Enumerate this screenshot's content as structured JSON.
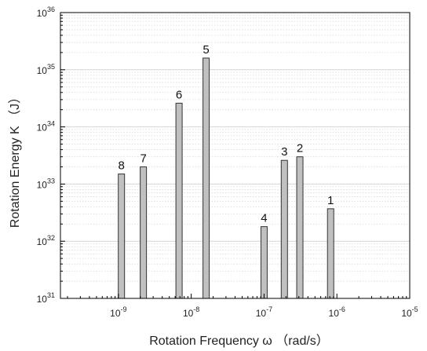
{
  "chart_data": {
    "type": "bar",
    "xlabel": "Rotation Frequency ω （rad/s）",
    "ylabel": "Rotation Energy K （J）",
    "x_scale": "log",
    "y_scale": "log",
    "xlim": [
      1.6e-10,
      1e-05
    ],
    "ylim": [
      1e+31,
      1e+36
    ],
    "x_ticks": [
      {
        "base": "10",
        "exp": "-9",
        "value": 1e-09
      },
      {
        "base": "10",
        "exp": "-8",
        "value": 1e-08
      },
      {
        "base": "10",
        "exp": "-7",
        "value": 1e-07
      },
      {
        "base": "10",
        "exp": "-6",
        "value": 1e-06
      },
      {
        "base": "10",
        "exp": "-5",
        "value": 1e-05
      }
    ],
    "y_ticks": [
      {
        "base": "10",
        "exp": "31",
        "value": 1e+31
      },
      {
        "base": "10",
        "exp": "32",
        "value": 1e+32
      },
      {
        "base": "10",
        "exp": "33",
        "value": 1e+33
      },
      {
        "base": "10",
        "exp": "34",
        "value": 1e+34
      },
      {
        "base": "10",
        "exp": "35",
        "value": 1e+35
      },
      {
        "base": "10",
        "exp": "36",
        "value": 1e+36
      }
    ],
    "grid": true,
    "bar_color": "#c0c0c0",
    "bars": [
      {
        "label": "8",
        "x": 1.1e-09,
        "y": 1.5e+33
      },
      {
        "label": "7",
        "x": 2.2e-09,
        "y": 2e+33
      },
      {
        "label": "6",
        "x": 6.8e-09,
        "y": 2.6e+34
      },
      {
        "label": "5",
        "x": 1.6e-08,
        "y": 1.6e+35
      },
      {
        "label": "4",
        "x": 1e-07,
        "y": 1.8e+32
      },
      {
        "label": "3",
        "x": 1.9e-07,
        "y": 2.6e+33
      },
      {
        "label": "2",
        "x": 3.1e-07,
        "y": 3e+33
      },
      {
        "label": "1",
        "x": 8.2e-07,
        "y": 3.7e+32
      }
    ]
  }
}
